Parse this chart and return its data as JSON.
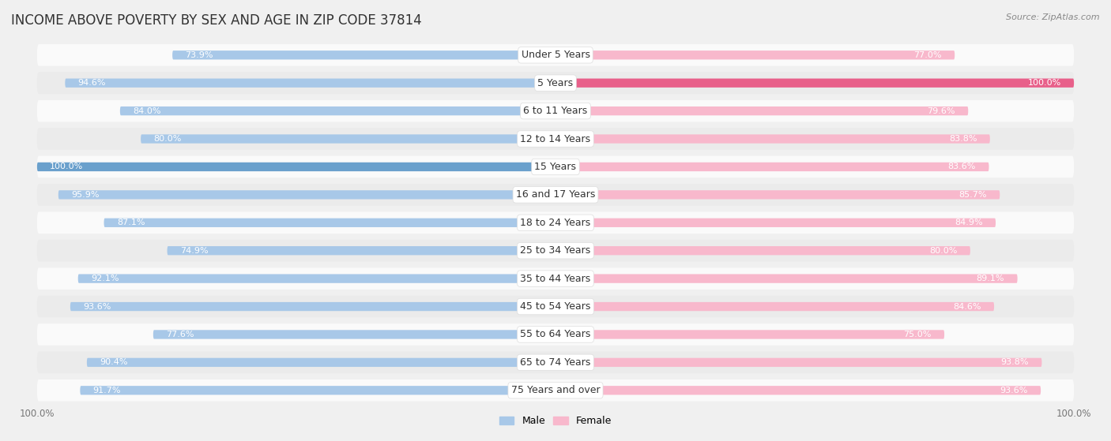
{
  "title": "INCOME ABOVE POVERTY BY SEX AND AGE IN ZIP CODE 37814",
  "source": "Source: ZipAtlas.com",
  "categories": [
    "Under 5 Years",
    "5 Years",
    "6 to 11 Years",
    "12 to 14 Years",
    "15 Years",
    "16 and 17 Years",
    "18 to 24 Years",
    "25 to 34 Years",
    "35 to 44 Years",
    "45 to 54 Years",
    "55 to 64 Years",
    "65 to 74 Years",
    "75 Years and over"
  ],
  "male_values": [
    73.9,
    94.6,
    84.0,
    80.0,
    100.0,
    95.9,
    87.1,
    74.9,
    92.1,
    93.6,
    77.6,
    90.4,
    91.7
  ],
  "female_values": [
    77.0,
    100.0,
    79.6,
    83.8,
    83.6,
    85.7,
    84.9,
    80.0,
    89.1,
    84.6,
    75.0,
    93.8,
    93.6
  ],
  "male_color_light": "#a8c8e8",
  "male_color_dark": "#6aa0cc",
  "female_color_light": "#f8b8cc",
  "female_color_dark": "#e8608a",
  "male_label": "Male",
  "female_label": "Female",
  "background_color": "#f0f0f0",
  "row_color_light": "#fafafa",
  "row_color_dark": "#ebebeb",
  "title_fontsize": 12,
  "label_fontsize": 9,
  "value_fontsize": 8
}
